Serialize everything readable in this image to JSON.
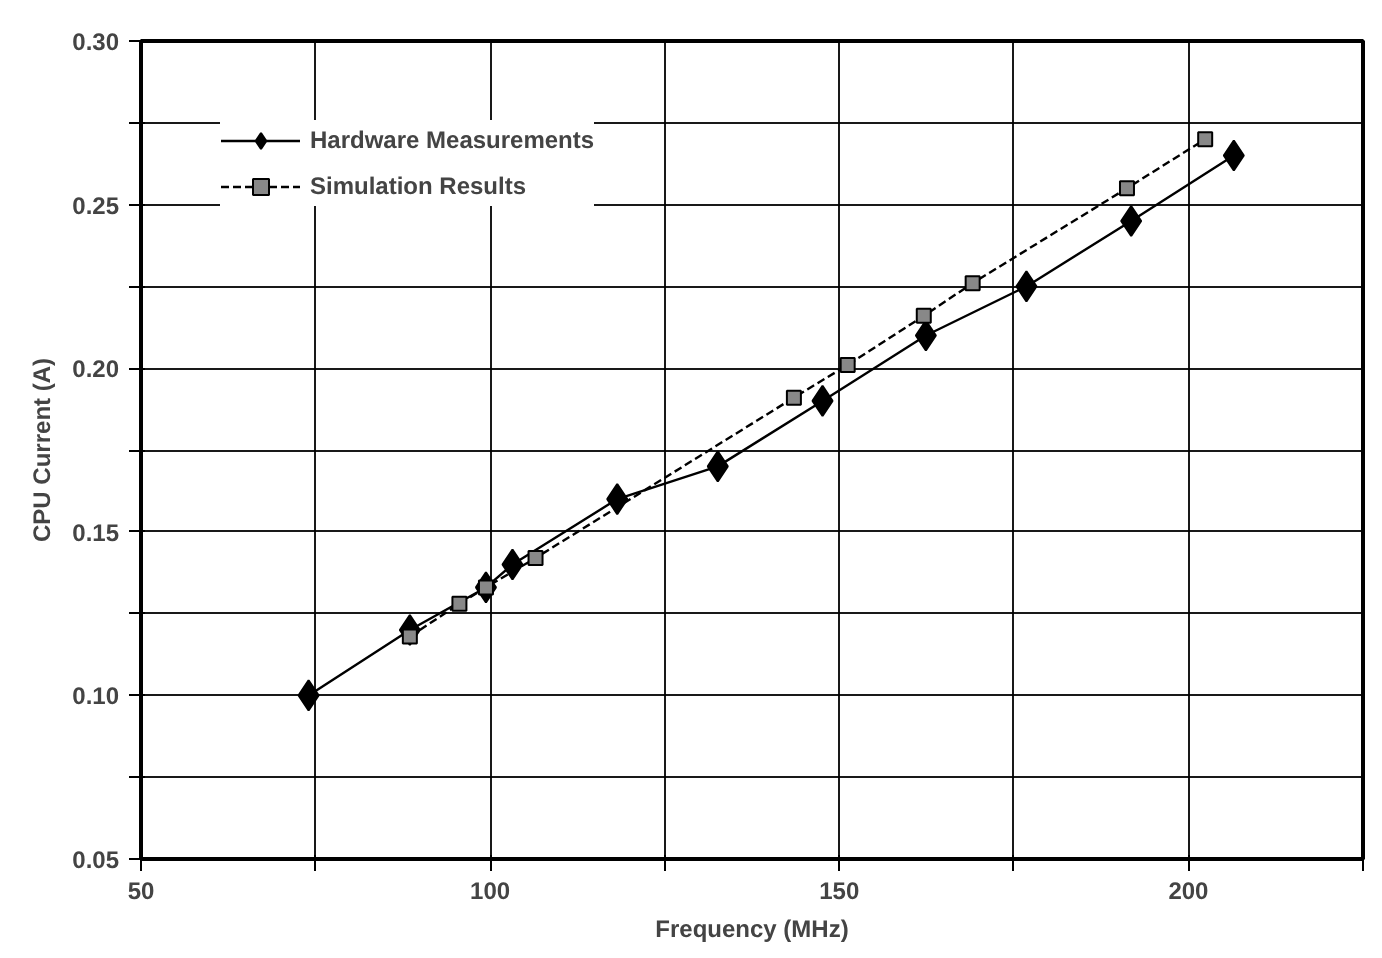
{
  "chart_data": {
    "type": "line",
    "xlabel": "Frequency (MHz)",
    "ylabel": "CPU Current (A)",
    "xlim": [
      50,
      225
    ],
    "ylim": [
      0.05,
      0.3
    ],
    "xticks": [
      50,
      {
        "value": 75,
        "label": null
      },
      100,
      {
        "value": 125,
        "label": null
      },
      150,
      {
        "value": 175,
        "label": null
      },
      200,
      {
        "value": 225,
        "label": null
      }
    ],
    "yticks": [
      {
        "value": 0.05,
        "label": "0.05"
      },
      {
        "value": 0.075,
        "label": null
      },
      {
        "value": 0.1,
        "label": "0.10"
      },
      {
        "value": 0.125,
        "label": null
      },
      {
        "value": 0.15,
        "label": "0.15"
      },
      {
        "value": 0.175,
        "label": null
      },
      {
        "value": 0.2,
        "label": "0.20"
      },
      {
        "value": 0.225,
        "label": null
      },
      {
        "value": 0.25,
        "label": "0.25"
      },
      {
        "value": 0.275,
        "label": null
      },
      {
        "value": 0.3,
        "label": "0.30"
      }
    ],
    "grid": true,
    "legend": "top left",
    "series": [
      {
        "name": "Hardware Measurements",
        "color": "#000000",
        "marker": "diamond",
        "line_style": "solid",
        "x": [
          74,
          88.5,
          99.4,
          103.2,
          118.2,
          132.6,
          147.6,
          162.4,
          176.8,
          191.8,
          206.5
        ],
        "values": [
          0.1,
          0.12,
          0.133,
          0.14,
          0.16,
          0.17,
          0.19,
          0.21,
          0.225,
          0.245,
          0.265
        ]
      },
      {
        "name": "Simulation Results",
        "color": "#000000",
        "marker": "square",
        "line_style": "dashed",
        "x": [
          88.5,
          95.6,
          99.4,
          106.5,
          143.5,
          151.2,
          162.1,
          169.1,
          191.2,
          202.4
        ],
        "values": [
          0.118,
          0.128,
          0.133,
          0.142,
          0.191,
          0.201,
          0.216,
          0.226,
          0.255,
          0.27
        ]
      }
    ]
  }
}
